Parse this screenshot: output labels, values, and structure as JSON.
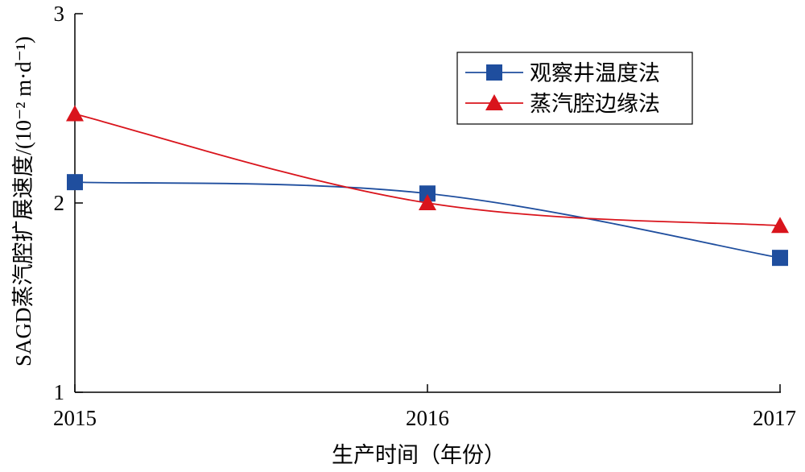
{
  "chart_data": {
    "type": "line",
    "title": "",
    "xlabel": "生产时间（年份）",
    "ylabel": "SAGD蒸汽腔扩展速度/(10⁻² m·d⁻¹)",
    "x": [
      "2015",
      "2016",
      "2017"
    ],
    "ylim": [
      1,
      3
    ],
    "yticks": [
      "1",
      "2",
      "3"
    ],
    "grid": false,
    "legend_position": "top-right",
    "series": [
      {
        "name": "观察井温度法",
        "marker": "square",
        "color": "#1f4e9e",
        "values": [
          2.11,
          2.05,
          1.71
        ]
      },
      {
        "name": "蒸汽腔边缘法",
        "marker": "triangle",
        "color": "#d9141c",
        "values": [
          2.47,
          2.0,
          1.88
        ]
      }
    ]
  }
}
